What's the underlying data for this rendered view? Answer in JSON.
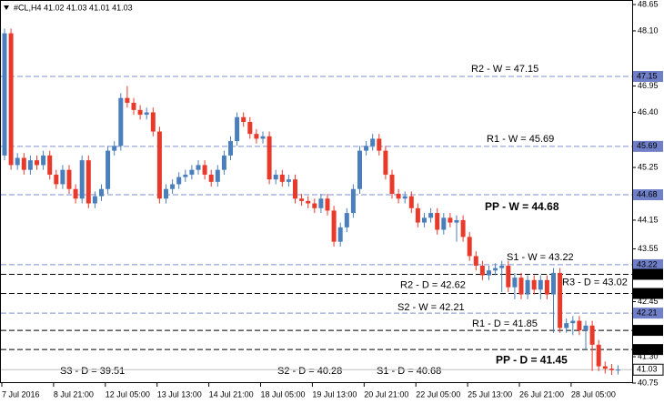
{
  "chart_data": {
    "type": "candlestick",
    "header": "#CL,H4  41.02 41.03 41.01 41.03",
    "up_color": "#4a7fbb",
    "down_color": "#e8392b",
    "ylim": [
      40.75,
      48.65
    ],
    "yticks": [
      48.65,
      {
        "value": 48.1,
        "label": "48.10"
      },
      46.95,
      {
        "value": 46.4,
        "label": "46.40"
      },
      45.25,
      44.15,
      43.55,
      42.45,
      {
        "value": 41.3,
        "label": "41.30"
      },
      40.75
    ],
    "x_labels": [
      "7 Jul 2016",
      "8 Jul 21:00",
      "12 Jul 05:00",
      "13 Jul 13:00",
      "14 Jul 21:00",
      "18 Jul 05:00",
      "19 Jul 13:00",
      "20 Jul 21:00",
      "22 Jul 05:00",
      "25 Jul 13:00",
      "26 Jul 21:00",
      "28 Jul 05:00"
    ],
    "open": [
      45.5,
      48.05,
      45.3,
      45.45,
      45.2,
      45.4,
      45.3,
      45.5,
      45.1,
      44.9,
      45.2,
      44.8,
      44.6,
      45.4,
      44.5,
      44.65,
      44.8,
      45.6,
      45.7,
      46.7,
      46.6,
      46.45,
      46.35,
      46.4,
      46.0,
      44.6,
      44.8,
      44.9,
      45.05,
      45.1,
      45.2,
      45.3,
      45.1,
      44.95,
      45.2,
      45.5,
      45.8,
      46.3,
      46.2,
      45.95,
      45.85,
      45.9,
      45.0,
      45.1,
      44.95,
      45.0,
      44.6,
      44.55,
      44.5,
      44.4,
      44.6,
      44.35,
      43.7,
      44.0,
      44.3,
      44.8,
      45.6,
      45.7,
      45.85,
      45.6,
      45.1,
      44.7,
      44.6,
      44.65,
      44.4,
      44.1,
      44.2,
      44.3,
      43.95,
      44.2,
      44.1,
      44.15,
      43.8,
      43.4,
      43.2,
      43.0,
      43.1,
      43.15,
      43.2,
      42.75,
      42.95,
      42.6,
      42.9,
      42.7,
      42.9,
      42.6,
      43.05,
      41.9,
      42.0,
      42.05,
      41.85,
      41.95,
      41.55,
      41.1,
      41.05,
      41.02
    ],
    "high": [
      48.15,
      48.15,
      45.55,
      45.55,
      45.5,
      45.5,
      45.6,
      45.6,
      45.2,
      45.3,
      45.3,
      44.9,
      45.5,
      45.5,
      44.75,
      44.9,
      45.7,
      45.8,
      46.8,
      46.95,
      46.7,
      46.55,
      46.5,
      46.5,
      46.1,
      44.9,
      45.0,
      45.15,
      45.2,
      45.3,
      45.4,
      45.4,
      45.2,
      45.3,
      45.6,
      45.9,
      46.4,
      46.4,
      46.3,
      46.05,
      46.0,
      46.0,
      45.2,
      45.2,
      45.1,
      45.1,
      44.7,
      44.65,
      44.6,
      44.7,
      44.7,
      44.45,
      44.1,
      44.4,
      44.9,
      45.7,
      45.8,
      45.95,
      45.95,
      45.7,
      45.2,
      44.8,
      44.75,
      44.75,
      44.5,
      44.3,
      44.4,
      44.4,
      44.3,
      44.3,
      44.25,
      44.25,
      43.9,
      43.5,
      43.3,
      43.2,
      43.25,
      43.3,
      43.3,
      43.05,
      43.05,
      43.0,
      43.0,
      43.0,
      43.0,
      43.15,
      43.15,
      42.1,
      42.15,
      42.15,
      42.05,
      42.05,
      41.65,
      41.2,
      41.15,
      41.12
    ],
    "low": [
      45.4,
      45.2,
      45.2,
      45.1,
      45.1,
      45.2,
      45.2,
      45.0,
      44.8,
      44.8,
      44.7,
      44.5,
      44.5,
      44.4,
      44.4,
      44.55,
      44.7,
      45.5,
      45.6,
      46.5,
      46.35,
      46.25,
      46.25,
      45.9,
      44.5,
      44.5,
      44.7,
      44.8,
      44.95,
      45.0,
      45.1,
      45.0,
      44.85,
      44.85,
      45.1,
      45.4,
      45.7,
      46.1,
      45.85,
      45.75,
      45.75,
      44.9,
      44.9,
      44.85,
      44.85,
      44.5,
      44.45,
      44.4,
      44.3,
      44.3,
      44.25,
      43.6,
      43.6,
      43.9,
      44.2,
      44.7,
      45.5,
      45.6,
      45.5,
      45.0,
      44.6,
      44.5,
      44.5,
      44.3,
      44.0,
      44.0,
      44.1,
      43.85,
      43.85,
      44.0,
      43.7,
      43.7,
      43.3,
      43.1,
      42.9,
      42.9,
      43.0,
      42.65,
      42.65,
      42.5,
      42.5,
      42.5,
      42.6,
      42.5,
      42.5,
      41.8,
      41.8,
      41.8,
      41.75,
      41.75,
      41.45,
      41.0,
      41.0,
      40.95,
      40.92,
      40.93
    ],
    "close": [
      48.05,
      45.3,
      45.45,
      45.2,
      45.4,
      45.3,
      45.5,
      45.1,
      44.9,
      45.2,
      44.8,
      44.6,
      45.4,
      44.5,
      44.65,
      44.8,
      45.6,
      45.7,
      46.7,
      46.6,
      46.45,
      46.35,
      46.4,
      46.0,
      44.6,
      44.8,
      44.9,
      45.05,
      45.1,
      45.2,
      45.3,
      45.1,
      44.95,
      45.2,
      45.5,
      45.8,
      46.3,
      46.2,
      45.95,
      45.85,
      45.9,
      45.0,
      45.1,
      44.95,
      45.0,
      44.6,
      44.55,
      44.5,
      44.4,
      44.6,
      44.35,
      43.7,
      44.0,
      44.3,
      44.8,
      45.6,
      45.7,
      45.85,
      45.6,
      45.1,
      44.7,
      44.6,
      44.65,
      44.4,
      44.1,
      44.2,
      44.3,
      43.95,
      44.2,
      44.1,
      44.15,
      43.8,
      43.4,
      43.2,
      43.0,
      43.1,
      43.15,
      43.2,
      42.75,
      42.95,
      42.6,
      42.9,
      42.7,
      42.9,
      42.6,
      43.05,
      41.9,
      42.0,
      42.05,
      41.85,
      41.95,
      41.55,
      41.1,
      41.05,
      41.02,
      41.03
    ],
    "last_price": 41.03,
    "weekly_levels": {
      "line_color": "#7f8fd0",
      "tag_color": "#6f7fc8",
      "levels": [
        {
          "label": "R2 - W = 47.15",
          "value": 47.15,
          "color": "#8a8ad0"
        },
        {
          "label": "R1 - W = 45.69",
          "value": 45.69,
          "color": "#8a8ad0"
        },
        {
          "label": "PP - W = 44.68",
          "value": 44.68,
          "color": "#5656d2"
        },
        {
          "label": "S1 - W = 43.22",
          "value": 43.22,
          "color": "#8a8ad0"
        },
        {
          "label": "S2 - W = 42.21",
          "value": 42.21,
          "color": "#8a8ad0"
        }
      ]
    },
    "daily_levels": {
      "line_color": "#000000",
      "tag_color": "#000000",
      "levels": [
        {
          "label": "R3 - D = 43.02",
          "value": 43.02,
          "color": "#e02020"
        },
        {
          "label": "R2 - D = 42.62",
          "value": 42.62,
          "color": "#e02020"
        },
        {
          "label": "R1 - D = 41.85",
          "value": 41.85,
          "color": "#e02020"
        },
        {
          "label": "PP - D = 41.45",
          "value": 41.45,
          "color": "#4a4ae0"
        }
      ]
    },
    "below_levels": [
      {
        "label": "S3 - D = 39.51",
        "value": 39.51,
        "color": "#e02020"
      },
      {
        "label": "S2 - D = 40.28",
        "value": 40.28,
        "color": "#e02020"
      },
      {
        "label": "S1 - D = 40.68",
        "value": 40.68,
        "color": "#e02020"
      }
    ]
  }
}
